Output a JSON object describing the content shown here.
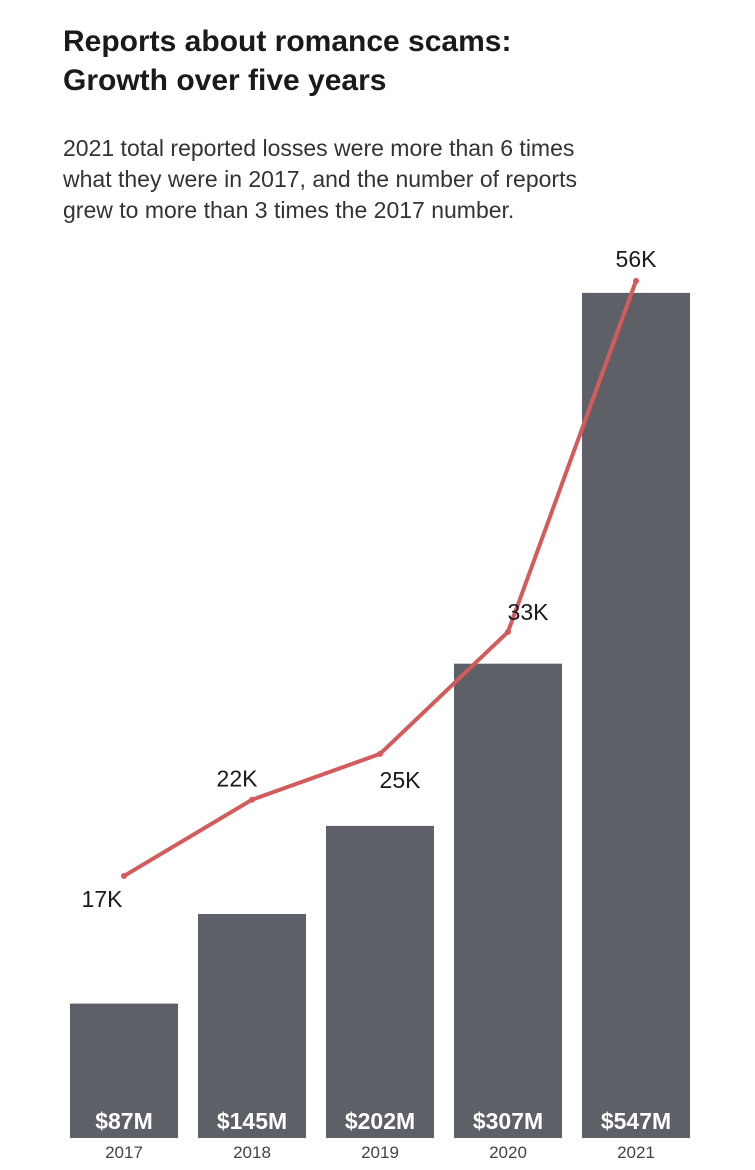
{
  "title_lines": [
    "Reports about romance scams:",
    "Growth over five years"
  ],
  "subtitle_lines": [
    "2021 total reported losses were more than 6 times",
    "what they were in 2017, and the number of reports",
    "grew to more than 3 times the 2017 number."
  ],
  "colors": {
    "bars": "#5e6068",
    "line": "#d45b5b",
    "text": "#1a1a1a"
  },
  "chart_data": {
    "type": "bar",
    "categories": [
      "2017",
      "2018",
      "2019",
      "2020",
      "2021"
    ],
    "series": [
      {
        "type": "bar",
        "values": [
          87,
          145,
          202,
          307,
          547
        ],
        "labels": [
          "$87M",
          "$145M",
          "$202M",
          "$307M",
          "$547M"
        ]
      },
      {
        "type": "line",
        "values": [
          17,
          22,
          25,
          33,
          56
        ],
        "labels": [
          "17K",
          "22K",
          "25K",
          "33K",
          "56K"
        ]
      }
    ],
    "xlabel": "",
    "ylabel": "",
    "grid": false,
    "legend": "none"
  }
}
